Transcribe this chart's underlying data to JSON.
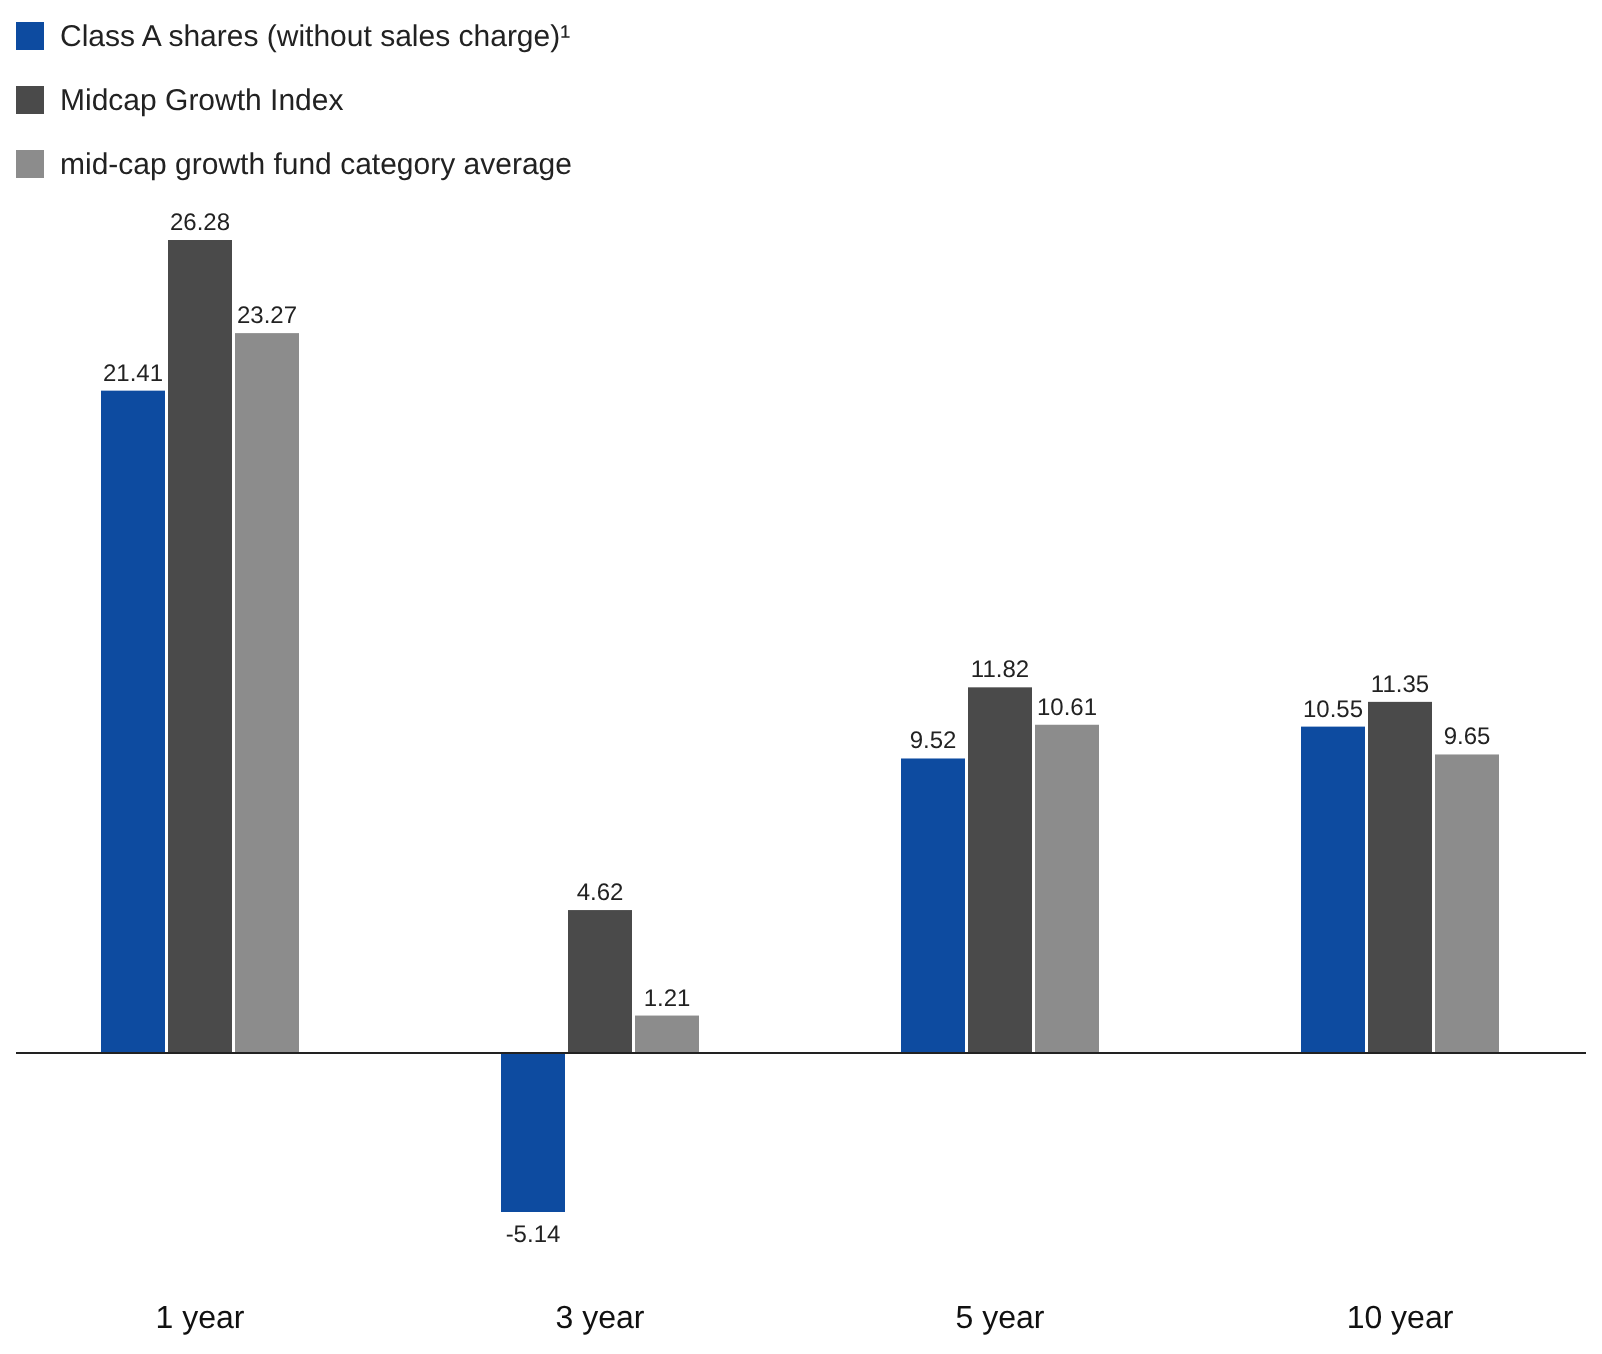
{
  "chart_data": {
    "type": "bar",
    "categories": [
      "1 year",
      "3 year",
      "5 year",
      "10 year"
    ],
    "series": [
      {
        "name": "Class A shares (without sales charge)¹",
        "color": "#0d4ba0",
        "values": [
          21.41,
          -5.14,
          9.52,
          10.55
        ]
      },
      {
        "name": "Midcap Growth Index",
        "color": "#4a4a4a",
        "values": [
          26.28,
          4.62,
          11.82,
          11.35
        ]
      },
      {
        "name": "mid-cap growth fund category average",
        "color": "#8c8c8c",
        "values": [
          23.27,
          1.21,
          10.61,
          9.65
        ]
      }
    ],
    "data_labels": true,
    "legend": "top left",
    "grid": false
  }
}
